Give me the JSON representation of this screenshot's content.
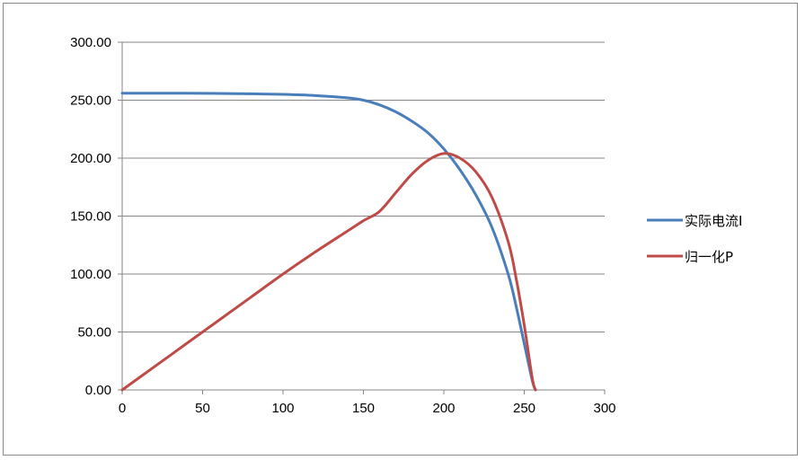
{
  "chart_data": {
    "type": "line",
    "title": "",
    "xlabel": "",
    "ylabel": "",
    "xlim": [
      0,
      300
    ],
    "ylim": [
      0,
      300
    ],
    "x_ticks": [
      0,
      50,
      100,
      150,
      200,
      250,
      300
    ],
    "y_ticks": [
      0,
      50,
      100,
      150,
      200,
      250,
      300
    ],
    "x_tick_labels": [
      "0",
      "50",
      "100",
      "150",
      "200",
      "250",
      "300"
    ],
    "y_tick_labels": [
      "0.00",
      "50.00",
      "100.00",
      "150.00",
      "200.00",
      "250.00",
      "300.00"
    ],
    "grid": "horizontal",
    "legend_position": "right",
    "series": [
      {
        "name": "实际电流I",
        "color": "#4a7ebb",
        "x": [
          0,
          20,
          40,
          60,
          80,
          100,
          120,
          140,
          150,
          160,
          170,
          180,
          190,
          200,
          210,
          220,
          230,
          240,
          245,
          250,
          255,
          257
        ],
        "y": [
          256,
          256,
          256,
          255.8,
          255.5,
          255,
          254,
          252,
          250,
          246,
          240,
          232,
          222,
          208,
          190,
          168,
          140,
          100,
          72,
          40,
          8,
          0
        ]
      },
      {
        "name": "归一化P",
        "color": "#be4b48",
        "x": [
          0,
          20,
          40,
          60,
          80,
          100,
          120,
          140,
          150,
          160,
          170,
          180,
          190,
          200,
          210,
          220,
          230,
          240,
          245,
          250,
          255,
          257
        ],
        "y": [
          0,
          20,
          40,
          60,
          80,
          100,
          119,
          137,
          146,
          154,
          170,
          186,
          198,
          204,
          200,
          188,
          166,
          128,
          96,
          56,
          10,
          0
        ]
      }
    ]
  }
}
